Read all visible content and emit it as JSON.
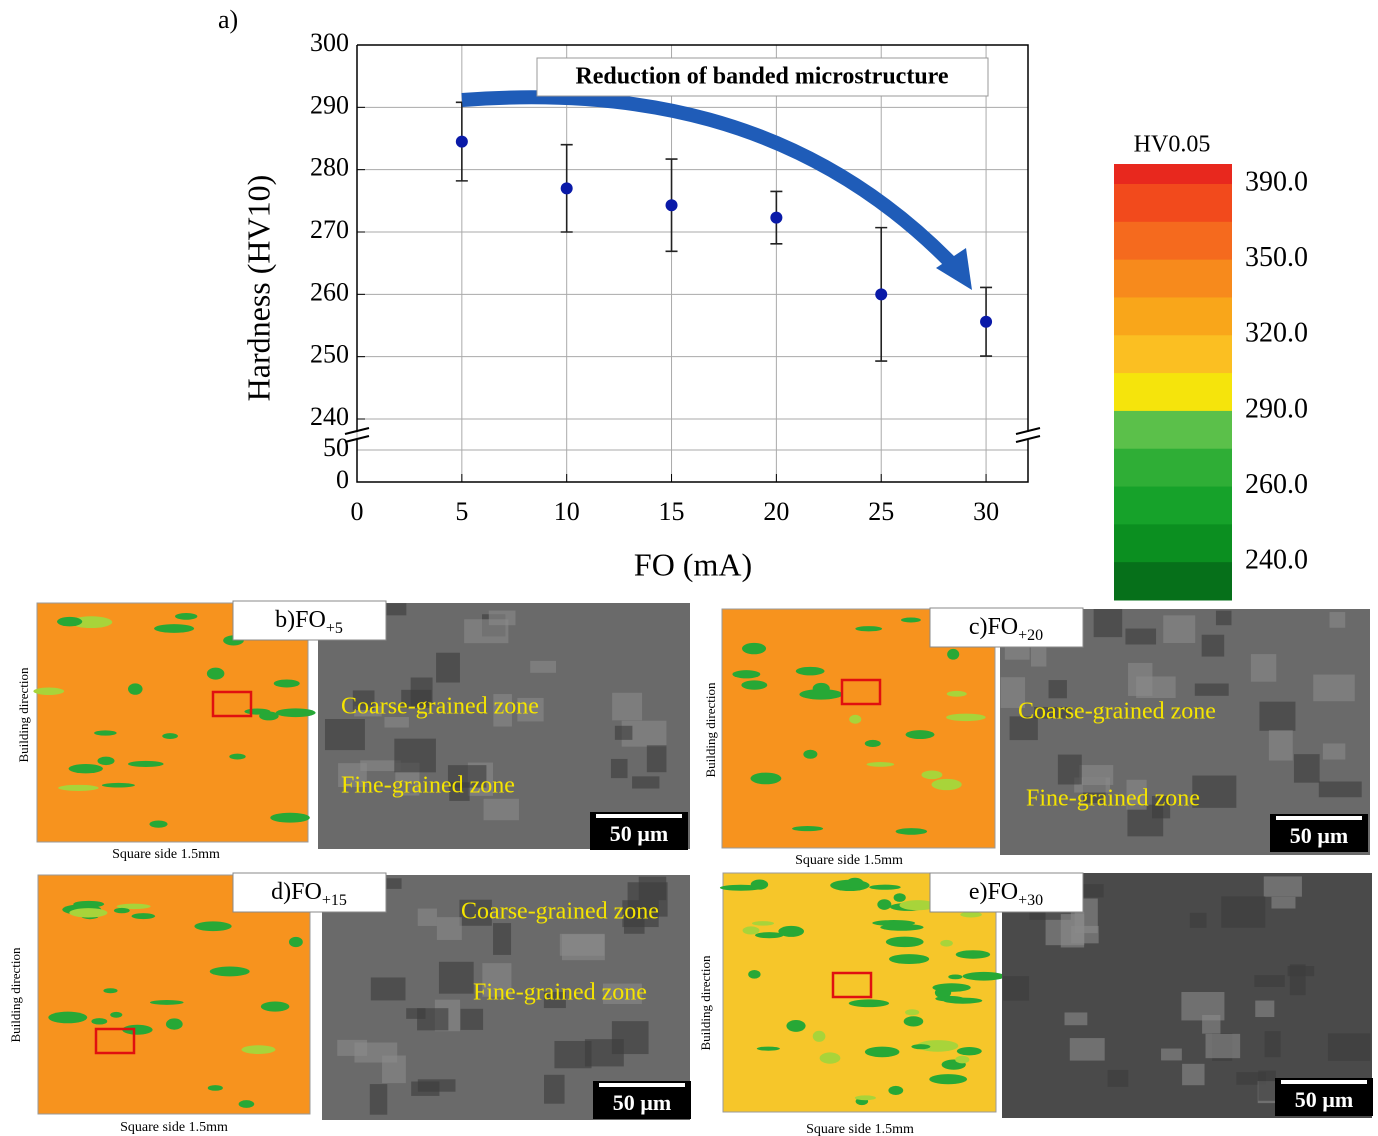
{
  "chart_data": {
    "type": "scatter",
    "panel_label": "a)",
    "xlabel": "FO (mA)",
    "ylabel": "Hardness (HV10)",
    "annotation": "Reduction of banded microstructure",
    "x": [
      5,
      10,
      15,
      20,
      25,
      30
    ],
    "values": [
      284.5,
      277,
      274.3,
      272.3,
      260,
      255.6
    ],
    "errors": [
      6.3,
      7,
      7.4,
      4.2,
      10.7,
      5.5
    ],
    "color": "#0a1aa8",
    "xlim": [
      0,
      32
    ],
    "xticks": [
      0,
      5,
      10,
      15,
      20,
      25,
      30
    ],
    "ylim": [
      240,
      300
    ],
    "yticks": [
      240,
      250,
      260,
      270,
      280,
      290,
      300
    ],
    "ylim_lower": [
      0,
      50
    ],
    "yticks_lower": [
      0,
      50
    ],
    "axis_break": true,
    "grid": true
  },
  "colorbar": {
    "title": "HV0.05",
    "colors": [
      "#e8281e",
      "#f24a1c",
      "#f56a1e",
      "#f78a1c",
      "#f9a61a",
      "#fbbf22",
      "#f5e40c",
      "#5bc04a",
      "#2fae36",
      "#16a22a",
      "#0b8f20",
      "#06701a"
    ],
    "labels": [
      "390.0",
      "350.0",
      "320.0",
      "290.0",
      "260.0",
      "240.0"
    ]
  },
  "panels": [
    {
      "label": "b)FO",
      "subscript": "+5",
      "axis_label": "Building direction",
      "side_label": "Square side 1.5mm",
      "zones": [
        "Coarse-grained zone",
        "Fine-grained zone"
      ],
      "scale_bar": "50 µm"
    },
    {
      "label": "c)FO",
      "subscript": "+20",
      "axis_label": "Building direction",
      "side_label": "Square side 1.5mm",
      "zones": [
        "Coarse-grained zone",
        "Fine-grained zone"
      ],
      "scale_bar": "50 µm"
    },
    {
      "label": "d)FO",
      "subscript": "+15",
      "axis_label": "Building direction",
      "side_label": "Square side 1.5mm",
      "zones": [
        "Coarse-grained zone",
        "Fine-grained zone"
      ],
      "scale_bar": "50 µm"
    },
    {
      "label": "e)FO",
      "subscript": "+30",
      "axis_label": "Building direction",
      "side_label": "Square side 1.5mm",
      "zones": [],
      "scale_bar": "50 µm"
    }
  ]
}
